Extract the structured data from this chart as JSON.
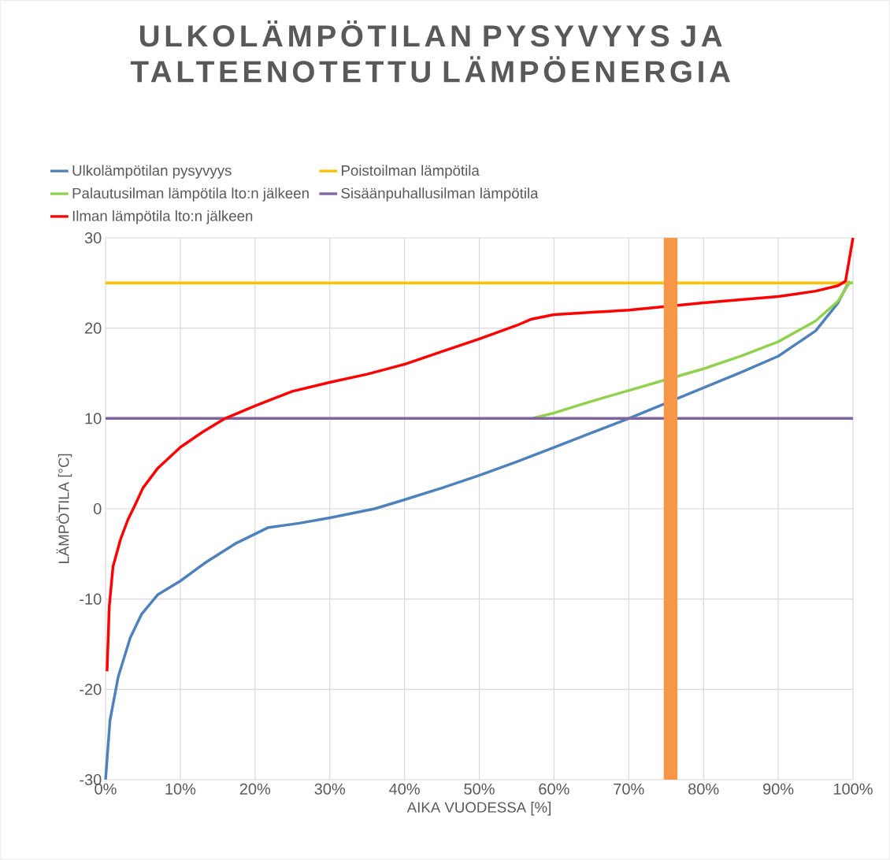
{
  "chart_data": {
    "type": "line",
    "title": "ULKOLÄMPÖTILAN PYSYVYYS JA TALTEENOTETTU LÄMPÖENERGIA",
    "xlabel": "AIKA VUODESSA [%]",
    "ylabel": "LÄMPÖTILA [°C]",
    "xlim": [
      0,
      100
    ],
    "ylim": [
      -30,
      30
    ],
    "xticks": [
      {
        "value": 0,
        "label": "0%"
      },
      {
        "value": 10,
        "label": "10%"
      },
      {
        "value": 20,
        "label": "20%"
      },
      {
        "value": 30,
        "label": "30%"
      },
      {
        "value": 40,
        "label": "40%"
      },
      {
        "value": 50,
        "label": "50%"
      },
      {
        "value": 60,
        "label": "60%"
      },
      {
        "value": 70,
        "label": "70%"
      },
      {
        "value": 80,
        "label": "80%"
      },
      {
        "value": 90,
        "label": "90%"
      },
      {
        "value": 100,
        "label": "100%"
      }
    ],
    "yticks": [
      -30,
      -20,
      -10,
      0,
      10,
      20,
      30
    ],
    "grid": true,
    "legend": "top",
    "marker": "none",
    "line_style": "solid",
    "series": [
      {
        "name": "Ulkolämpötilan pysyvyys",
        "color": "#4f81bd",
        "x": [
          0,
          0.6,
          1.7,
          3.3,
          4.8,
          7,
          10,
          13.3,
          17.5,
          21.7,
          25.9,
          30,
          36,
          40,
          45,
          50,
          55,
          60,
          65,
          70,
          75,
          80,
          85,
          90,
          95,
          98,
          99.5
        ],
        "values": [
          -30,
          -23.4,
          -18.6,
          -14.3,
          -11.7,
          -9.5,
          -8,
          -6,
          -3.8,
          -2.1,
          -1.6,
          -1,
          0,
          1,
          2.3,
          3.7,
          5.2,
          6.8,
          8.4,
          10,
          11.7,
          13.4,
          15.1,
          16.9,
          19.7,
          22.8,
          25.2
        ]
      },
      {
        "name": "Poistoilman lämpötila",
        "color": "#ffc000",
        "x": [
          0,
          100
        ],
        "values": [
          25,
          25
        ]
      },
      {
        "name": "Palautusilman lämpötila lto:n jälkeen",
        "color": "#92d050",
        "x": [
          57,
          60,
          65,
          70,
          75,
          80,
          85,
          90,
          95,
          98,
          99.5,
          100
        ],
        "values": [
          10,
          10.6,
          11.9,
          13.1,
          14.3,
          15.5,
          16.9,
          18.5,
          20.8,
          23,
          25,
          25
        ]
      },
      {
        "name": "Sisäänpuhallusilman lämpötila",
        "color": "#8064a2",
        "x": [
          0,
          100
        ],
        "values": [
          10,
          10
        ]
      },
      {
        "name": "Ilman lämpötila lto:n jälkeen",
        "color": "#ff0000",
        "x": [
          0.2,
          0.5,
          1,
          2,
          3,
          4,
          5,
          7,
          10,
          13,
          16,
          20,
          25,
          30,
          35,
          40,
          45,
          50,
          55,
          57,
          60,
          70,
          80,
          90,
          95,
          98,
          99,
          100
        ],
        "values": [
          -18,
          -10.8,
          -6.4,
          -3.4,
          -1.2,
          0.5,
          2.3,
          4.5,
          6.8,
          8.5,
          10,
          11.4,
          13,
          14,
          14.9,
          16,
          17.4,
          18.8,
          20.3,
          21,
          21.5,
          22,
          22.8,
          23.5,
          24.1,
          24.7,
          25.2,
          30
        ]
      }
    ],
    "ref_lines": [
      {
        "axis": "x",
        "value": 75.6,
        "color": "#f79646"
      }
    ]
  }
}
